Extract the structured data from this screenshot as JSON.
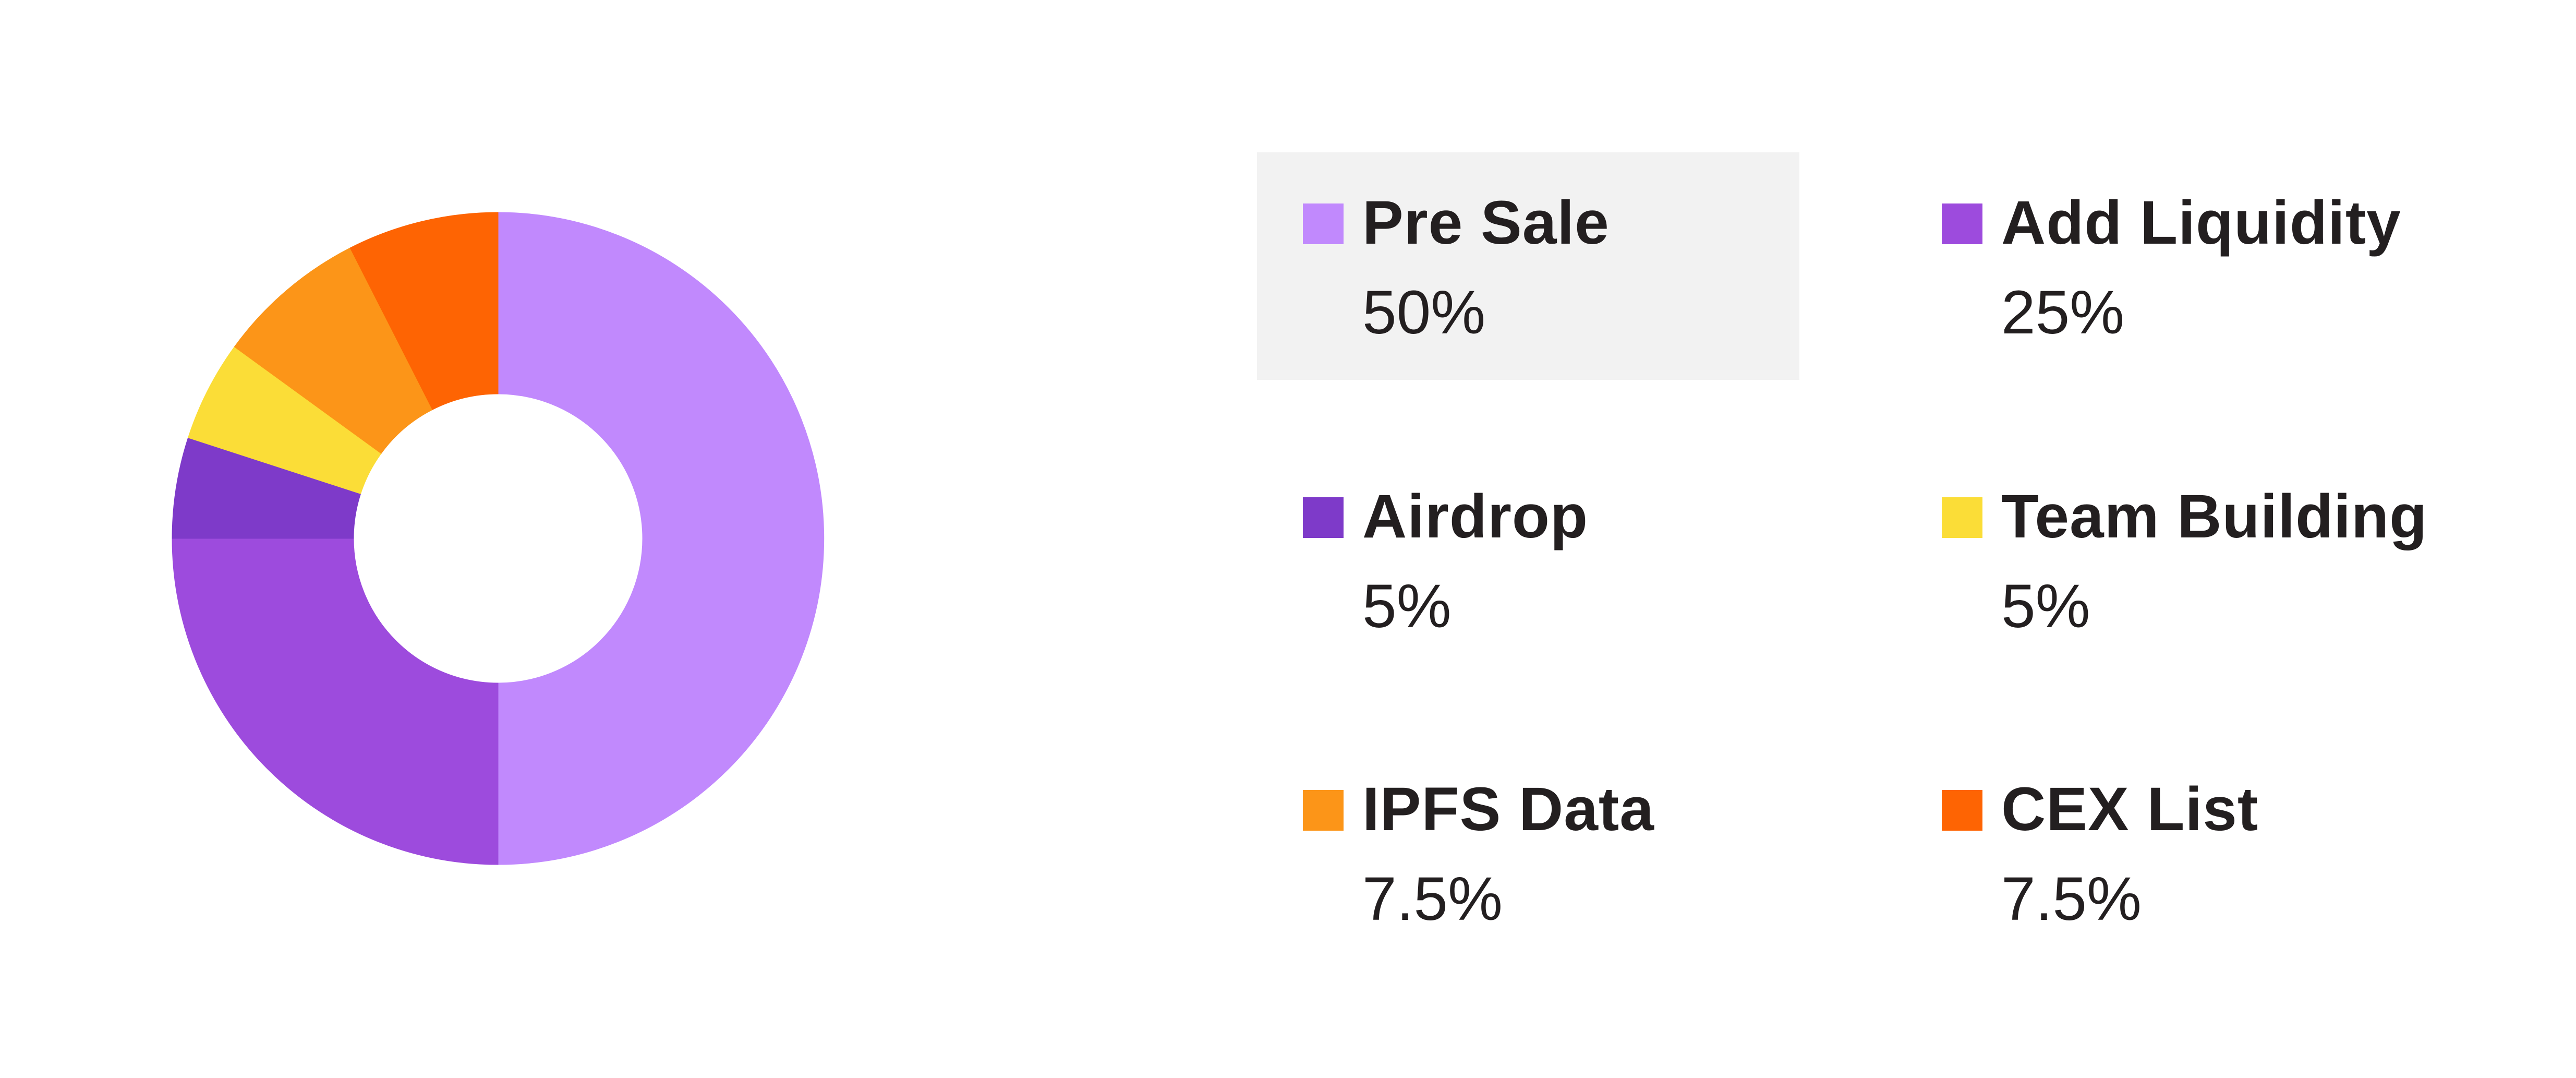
{
  "chart_data": {
    "type": "pie",
    "variant": "donut",
    "categories": [
      "Pre Sale",
      "Add Liquidity",
      "Airdrop",
      "Team Building",
      "IPFS Data",
      "CEX List"
    ],
    "values": [
      50,
      25,
      5,
      5,
      7.5,
      7.5
    ],
    "value_labels": [
      "50%",
      "25%",
      "5%",
      "5%",
      "7.5%",
      "7.5%"
    ],
    "colors": [
      "#c189fd",
      "#9d4bdd",
      "#7e3ac9",
      "#fbdd37",
      "#fc9518",
      "#fe6403"
    ],
    "start": "top",
    "direction": "clockwise",
    "legend_position": "right",
    "highlighted": "Pre Sale"
  }
}
